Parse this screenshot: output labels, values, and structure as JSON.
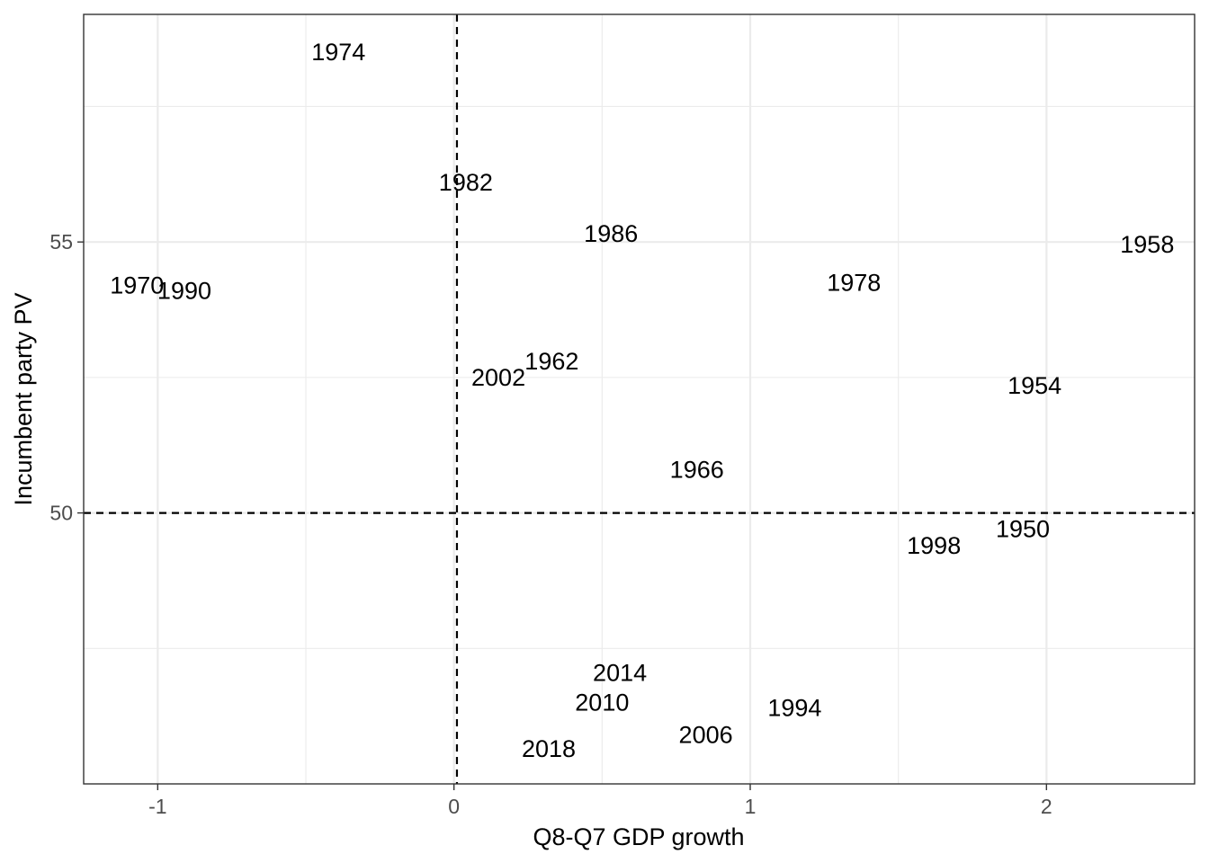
{
  "chart_data": {
    "type": "scatter",
    "title": "",
    "xlabel": "Q8-Q7 GDP growth",
    "ylabel": "Incumbent party PV",
    "xlim": [
      -1.25,
      2.5
    ],
    "ylim": [
      45.0,
      59.2
    ],
    "x_ticks": [
      {
        "value": -1,
        "label": "-1"
      },
      {
        "value": 0,
        "label": "0"
      },
      {
        "value": 1,
        "label": "1"
      },
      {
        "value": 2,
        "label": "2"
      }
    ],
    "y_ticks": [
      {
        "value": 50,
        "label": "50"
      },
      {
        "value": 55,
        "label": "55"
      }
    ],
    "x_minor": [
      -0.5,
      0.5,
      1.5
    ],
    "y_minor": [
      47.5,
      52.5,
      57.5
    ],
    "grid": true,
    "reference_lines": {
      "x": 0.01,
      "y": 50
    },
    "points": [
      {
        "label": "1974",
        "x": -0.39,
        "y": 58.5
      },
      {
        "label": "1982",
        "x": 0.04,
        "y": 56.1
      },
      {
        "label": "1986",
        "x": 0.53,
        "y": 55.15
      },
      {
        "label": "1958",
        "x": 2.34,
        "y": 54.95
      },
      {
        "label": "1970",
        "x": -1.07,
        "y": 54.2
      },
      {
        "label": "1990",
        "x": -0.91,
        "y": 54.1
      },
      {
        "label": "1978",
        "x": 1.35,
        "y": 54.25
      },
      {
        "label": "1962",
        "x": 0.33,
        "y": 52.8
      },
      {
        "label": "2002",
        "x": 0.15,
        "y": 52.5
      },
      {
        "label": "1954",
        "x": 1.96,
        "y": 52.35
      },
      {
        "label": "1966",
        "x": 0.82,
        "y": 50.8
      },
      {
        "label": "1950",
        "x": 1.92,
        "y": 49.7
      },
      {
        "label": "1998",
        "x": 1.62,
        "y": 49.4
      },
      {
        "label": "2014",
        "x": 0.56,
        "y": 47.05
      },
      {
        "label": "2010",
        "x": 0.5,
        "y": 46.5
      },
      {
        "label": "1994",
        "x": 1.15,
        "y": 46.4
      },
      {
        "label": "2006",
        "x": 0.85,
        "y": 45.9
      },
      {
        "label": "2018",
        "x": 0.32,
        "y": 45.65
      }
    ]
  }
}
